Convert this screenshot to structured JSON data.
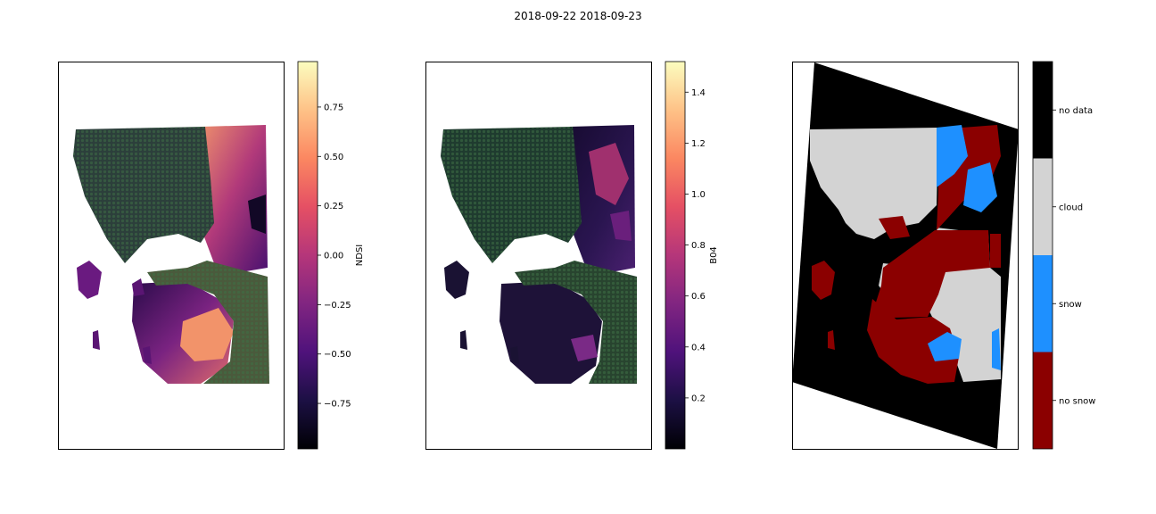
{
  "figure": {
    "title": "2018-09-22 2018-09-23"
  },
  "colors": {
    "magma": [
      "#000004",
      "#1c1044",
      "#4f127b",
      "#812581",
      "#b5367a",
      "#e55064",
      "#fb8761",
      "#fec287",
      "#fcfdbf"
    ],
    "mask_green": "#2e6b3a",
    "no_snow": "#8b0000",
    "snow": "#1e90ff",
    "cloud": "#d3d3d3",
    "no_data": "#000000"
  },
  "chart_data": [
    {
      "type": "heatmap",
      "name": "ndsi-map",
      "colorbar": {
        "label": "NDSI",
        "range": [
          -0.98,
          0.98
        ],
        "ticks": [
          0.75,
          0.5,
          0.25,
          0.0,
          -0.25,
          -0.5,
          -0.75
        ],
        "tick_labels": [
          "0.75",
          "0.50",
          "0.25",
          "0.00",
          "−0.25",
          "−0.50",
          "−0.75"
        ]
      }
    },
    {
      "type": "heatmap",
      "name": "b04-map",
      "colorbar": {
        "label": "B04",
        "range": [
          0.0,
          1.52
        ],
        "ticks": [
          1.4,
          1.2,
          1.0,
          0.8,
          0.6,
          0.4,
          0.2
        ],
        "tick_labels": [
          "1.4",
          "1.2",
          "1.0",
          "0.8",
          "0.6",
          "0.4",
          "0.2"
        ]
      }
    },
    {
      "type": "heatmap",
      "name": "classification-map",
      "colorbar": {
        "categories": [
          "no data",
          "cloud",
          "snow",
          "no snow"
        ],
        "category_colors": [
          "#000000",
          "#d3d3d3",
          "#1e90ff",
          "#8b0000"
        ]
      }
    }
  ]
}
